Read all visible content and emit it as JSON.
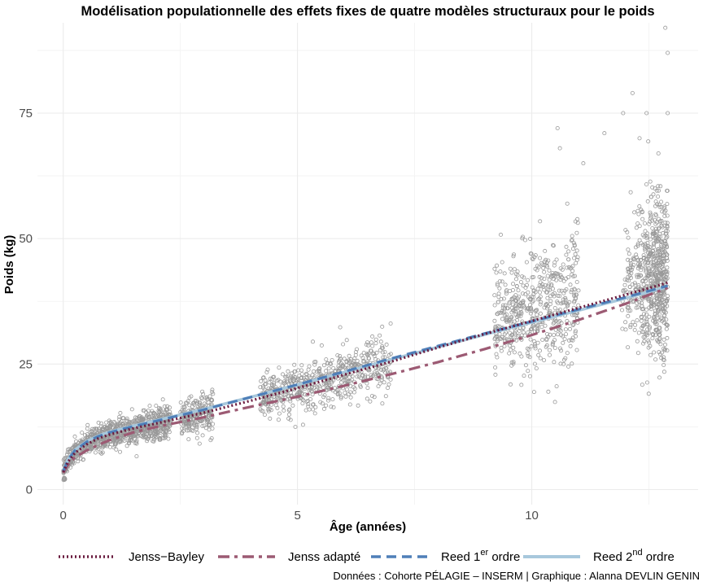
{
  "chart_data": {
    "type": "scatter",
    "title": "Modélisation populationnelle des effets fixes de quatre modèles structuraux pour le poids",
    "xlabel": "Âge (années)",
    "ylabel": "Poids (kg)",
    "xlim": [
      -0.55,
      13.55
    ],
    "ylim": [
      -3,
      93
    ],
    "x_ticks": [
      0,
      5,
      10
    ],
    "y_ticks": [
      0,
      25,
      50,
      75
    ],
    "grid": true,
    "legend_position": "bottom",
    "caption": "Données : Cohorte PÉLAGIE – INSERM | Graphique : Alanna DEVLIN GENIN",
    "points_color": "#999999",
    "point_clusters": [
      {
        "x_min": 0.0,
        "x_max": 2.3,
        "note_center_weight": "growth curve",
        "n": 900,
        "spread": 1.6
      },
      {
        "x_min": 2.5,
        "x_max": 3.2,
        "n": 220,
        "spread": 2.0
      },
      {
        "x_min": 4.2,
        "x_max": 7.0,
        "n": 600,
        "spread": 3.2
      },
      {
        "x_min": 9.2,
        "x_max": 11.0,
        "n": 550,
        "spread": 7.5
      },
      {
        "x_min": 11.9,
        "x_max": 12.9,
        "n": 650,
        "spread": 8.5
      }
    ],
    "outliers": [
      {
        "x": 12.85,
        "y": 92
      },
      {
        "x": 12.9,
        "y": 87
      },
      {
        "x": 12.15,
        "y": 79
      },
      {
        "x": 11.95,
        "y": 75
      },
      {
        "x": 12.45,
        "y": 75
      },
      {
        "x": 12.9,
        "y": 75
      },
      {
        "x": 10.55,
        "y": 72
      },
      {
        "x": 11.55,
        "y": 71
      },
      {
        "x": 10.6,
        "y": 68
      },
      {
        "x": 11.1,
        "y": 65
      },
      {
        "x": 12.3,
        "y": 70
      }
    ],
    "series": [
      {
        "name": "Jenss−Bayley",
        "color": "#6a1b3f",
        "dash": "dotted",
        "x": [
          0,
          0.1,
          0.25,
          0.5,
          0.75,
          1,
          1.5,
          2,
          3,
          4,
          5,
          6,
          7,
          8,
          9,
          10,
          11,
          12,
          12.9
        ],
        "y": [
          3.5,
          5.5,
          7.3,
          9.0,
          10.2,
          11.0,
          12.2,
          13.2,
          15.3,
          17.7,
          20.2,
          22.9,
          25.5,
          28.3,
          31.0,
          33.6,
          36.2,
          38.8,
          41.2
        ]
      },
      {
        "name": "Jenss adapté",
        "color": "#9c5a73",
        "dash": "dashdot",
        "x": [
          0,
          0.1,
          0.25,
          0.5,
          0.75,
          1,
          1.5,
          2,
          3,
          4,
          5,
          6,
          7,
          8,
          9,
          10,
          11,
          12,
          12.9
        ],
        "y": [
          3.3,
          4.9,
          6.4,
          7.8,
          8.9,
          9.9,
          11.4,
          12.5,
          14.4,
          16.5,
          18.5,
          20.7,
          23.0,
          25.4,
          28.0,
          30.8,
          33.8,
          37.0,
          40.2
        ]
      },
      {
        "name": "Reed",
        "name_sup": "er",
        "name_suffix": "ordre",
        "ordinal": "1",
        "color": "#4f7fb8",
        "dash": "dashed",
        "x": [
          0,
          0.1,
          0.25,
          0.5,
          0.75,
          1,
          1.5,
          2,
          3,
          4,
          5,
          6,
          7,
          8,
          9,
          10,
          11,
          12,
          12.9
        ],
        "y": [
          3.6,
          5.9,
          7.8,
          9.5,
          10.6,
          11.4,
          12.6,
          13.7,
          15.9,
          18.4,
          20.9,
          23.5,
          26.1,
          28.6,
          31.1,
          33.5,
          35.9,
          38.3,
          40.6
        ]
      },
      {
        "name": "Reed",
        "name_sup": "nd",
        "name_suffix": "ordre",
        "ordinal": "2",
        "color": "#a8c8dc",
        "dash": "solid",
        "x": [
          0,
          0.1,
          0.25,
          0.5,
          0.75,
          1,
          1.5,
          2,
          3,
          4,
          5,
          6,
          7,
          8,
          9,
          10,
          11,
          12,
          12.9
        ],
        "y": [
          3.7,
          6.0,
          7.9,
          9.6,
          10.7,
          11.5,
          12.7,
          13.8,
          16.0,
          18.4,
          20.9,
          23.4,
          25.9,
          28.4,
          30.9,
          33.3,
          35.7,
          38.1,
          40.4
        ]
      }
    ]
  }
}
